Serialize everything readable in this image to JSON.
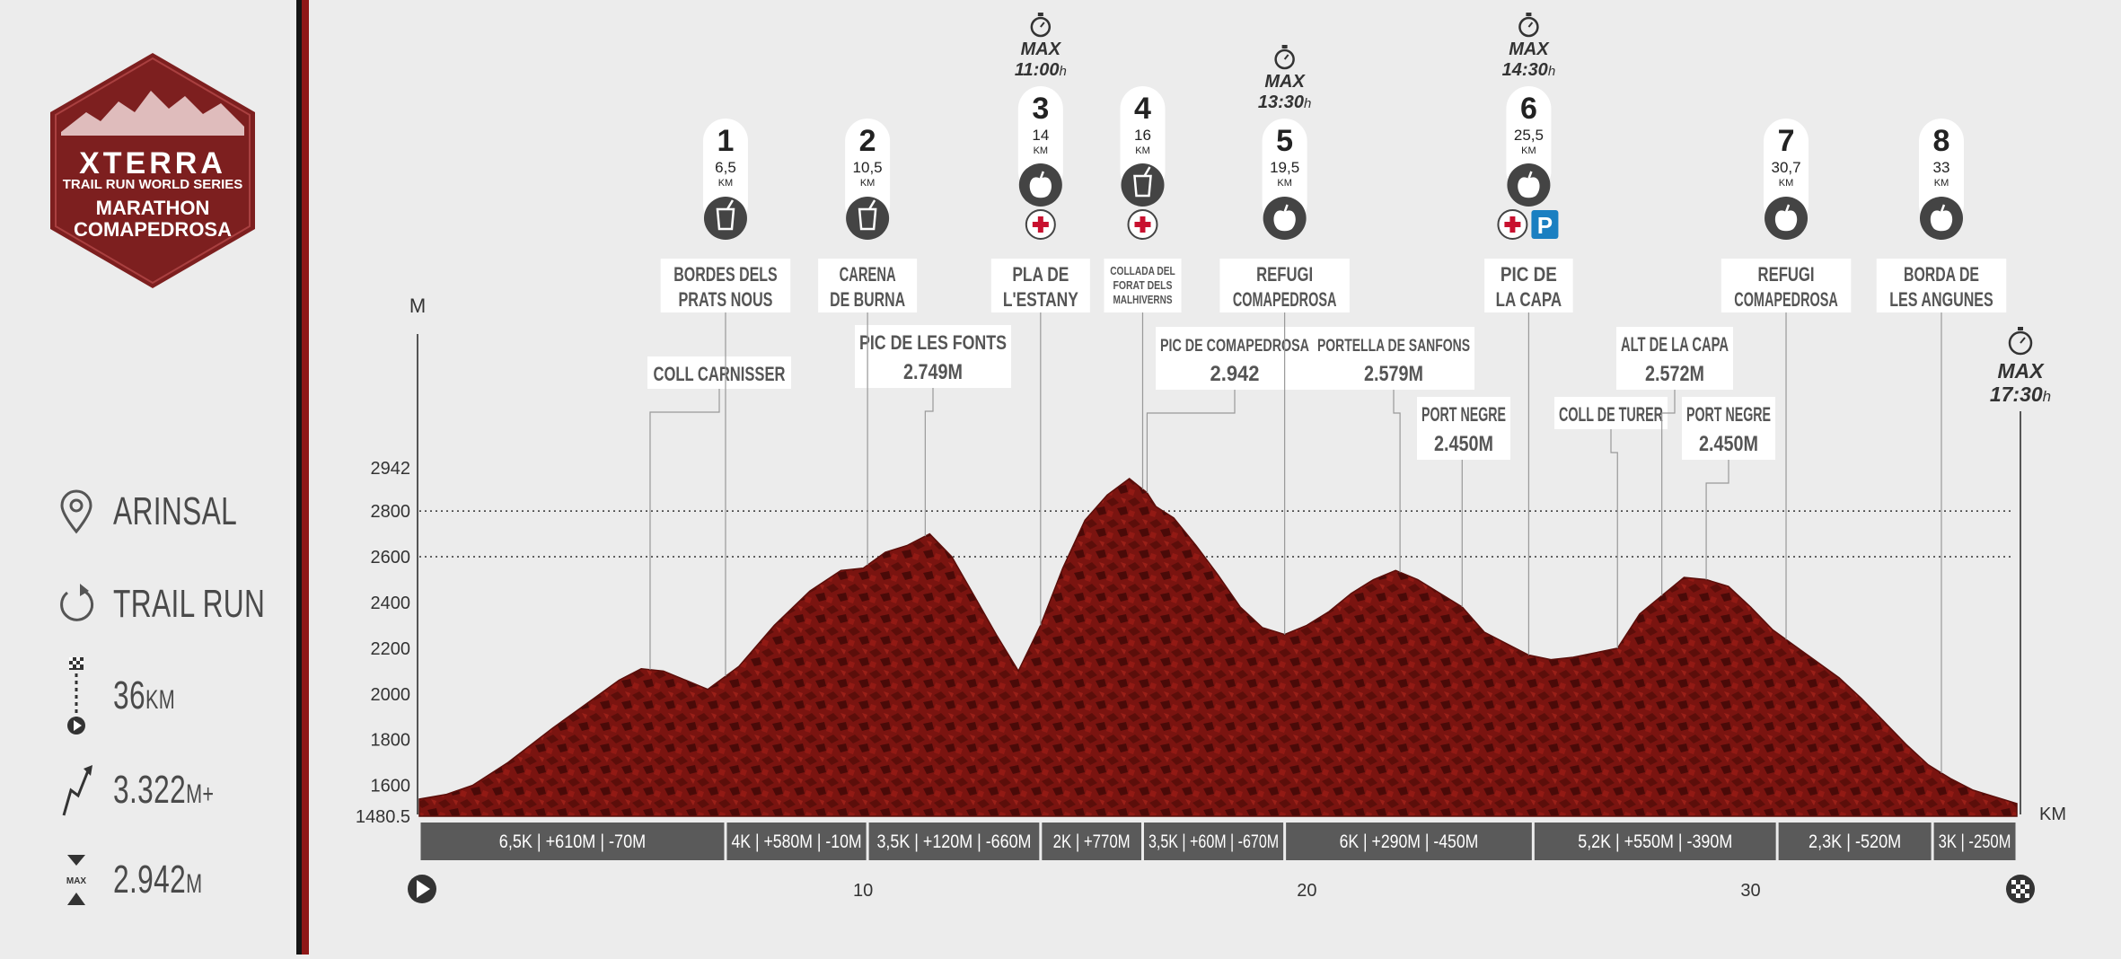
{
  "logo": {
    "brand": "XTERRA",
    "series": "TRAIL RUN WORLD SERIES",
    "race_line1": "MARATHON",
    "race_line2": "COMAPEDROSA"
  },
  "stats": {
    "location": "ARINSAL",
    "type": "TRAIL RUN",
    "distance": "36",
    "distance_unit": "KM",
    "elevation_gain": "3.322",
    "elevation_gain_unit": "M+",
    "max_altitude": "2.942",
    "max_altitude_unit": "M",
    "max_label": "MAX"
  },
  "colors": {
    "profile": "#7a1410",
    "accent_red": "#8e1717",
    "marker_dark": "#444444",
    "parking_blue": "#1a7fc1",
    "first_aid_red": "#c8102e"
  },
  "chart_data": {
    "type": "area",
    "ylabel": "M",
    "xlabel": "KM",
    "ylim": [
      1480.5,
      2942
    ],
    "xlim": [
      0,
      36
    ],
    "y_ticks": [
      "1480.5",
      "1600",
      "1800",
      "2000",
      "2200",
      "2400",
      "2600",
      "2800",
      "2942"
    ],
    "x_ticks": [
      "10",
      "20",
      "30"
    ],
    "reference_lines": [
      2800,
      2600
    ],
    "profile": {
      "x": [
        0,
        0.6,
        1.2,
        2,
        3,
        4,
        4.5,
        5,
        5.5,
        6,
        6.5,
        7.2,
        8,
        8.8,
        9.5,
        10,
        10.5,
        11,
        11.5,
        12,
        12.5,
        13,
        13.5,
        14,
        14.5,
        15,
        15.5,
        16,
        16.4,
        16.6,
        17,
        17.5,
        18,
        18.5,
        19,
        19.5,
        20,
        20.5,
        21,
        21.5,
        22,
        22.5,
        23,
        23.5,
        24,
        24.5,
        25,
        25.5,
        26,
        26.5,
        27,
        27.5,
        28,
        28.5,
        29,
        29.5,
        30,
        30.5,
        31,
        31.5,
        32,
        32.5,
        33,
        33.5,
        34,
        34.5,
        35,
        35.5,
        36
      ],
      "y": [
        1540,
        1560,
        1600,
        1700,
        1850,
        1990,
        2060,
        2110,
        2100,
        2060,
        2020,
        2120,
        2300,
        2450,
        2540,
        2550,
        2620,
        2650,
        2700,
        2600,
        2430,
        2260,
        2100,
        2300,
        2550,
        2760,
        2870,
        2942,
        2880,
        2820,
        2770,
        2650,
        2520,
        2380,
        2290,
        2260,
        2300,
        2360,
        2440,
        2500,
        2540,
        2500,
        2440,
        2380,
        2270,
        2220,
        2170,
        2150,
        2160,
        2180,
        2200,
        2350,
        2430,
        2510,
        2500,
        2470,
        2380,
        2280,
        2210,
        2140,
        2070,
        1980,
        1880,
        1780,
        1690,
        1630,
        1580,
        1550,
        1520
      ]
    },
    "checkpoints": [
      {
        "num": "1",
        "km": "6,5",
        "unit": "KM",
        "name_l1": "BORDES DELS",
        "name_l2": "PRATS NOUS",
        "service": "drink-icon",
        "x": 6.9
      },
      {
        "num": "2",
        "km": "10,5",
        "unit": "KM",
        "name_l1": "CARENA",
        "name_l2": "DE BURNA",
        "service": "drink-icon",
        "x": 10.1
      },
      {
        "num": "3",
        "km": "14",
        "unit": "KM",
        "name_l1": "PLA DE",
        "name_l2": "L'ESTANY",
        "service": "apple-icon",
        "extra": [
          "first-aid-icon"
        ],
        "cutoff_label": "MAX",
        "cutoff_time": "11:00",
        "cutoff_suffix": "h",
        "x": 14
      },
      {
        "num": "4",
        "km": "16",
        "unit": "KM",
        "name_l1": "COLLADA DEL",
        "name_l2": "FORAT DELS",
        "name_l3": "MALHIVERNS",
        "service": "drink-icon",
        "extra": [
          "first-aid-icon"
        ],
        "x": 16.3
      },
      {
        "num": "5",
        "km": "19,5",
        "unit": "KM",
        "name_l1": "REFUGI",
        "name_l2": "COMAPEDROSA",
        "service": "apple-icon",
        "cutoff_label": "MAX",
        "cutoff_time": "13:30",
        "cutoff_suffix": "h",
        "x": 19.5
      },
      {
        "num": "6",
        "km": "25,5",
        "unit": "KM",
        "name_l1": "PIC DE",
        "name_l2": "LA CAPA",
        "service": "apple-icon",
        "extra": [
          "first-aid-icon",
          "parking-icon"
        ],
        "cutoff_label": "MAX",
        "cutoff_time": "14:30",
        "cutoff_suffix": "h",
        "x": 25
      },
      {
        "num": "7",
        "km": "30,7",
        "unit": "KM",
        "name_l1": "REFUGI",
        "name_l2": "COMAPEDROSA",
        "service": "apple-icon",
        "x": 30.8
      },
      {
        "num": "8",
        "km": "33",
        "unit": "KM",
        "name_l1": "BORDA DE",
        "name_l2": "LES ANGUNES",
        "service": "apple-icon",
        "x": 34.3
      }
    ],
    "peaks": [
      {
        "name": "COLL CARNISSER",
        "alt": "",
        "x": 5.2
      },
      {
        "name": "PIC DE LES FONTS",
        "alt": "2.749M",
        "x": 11.4
      },
      {
        "name": "PIC DE COMAPEDROSA",
        "alt": "2.942",
        "x": 16.4
      },
      {
        "name": "PORTELLA DE SANFONS",
        "alt": "2.579M",
        "x": 22.1
      },
      {
        "name": "PORT NEGRE",
        "alt": "2.450M",
        "x": 23.5
      },
      {
        "name": "COLL DE TURER",
        "alt": "",
        "x": 27
      },
      {
        "name": "ALT DE LA CAPA",
        "alt": "2.572M",
        "x": 28
      },
      {
        "name": "PORT NEGRE",
        "alt": "2.450M",
        "x": 29
      }
    ],
    "finish": {
      "label": "MAX",
      "time": "17:30",
      "suffix": "h"
    },
    "segments": [
      {
        "text": "6,5K | +610M | -70M",
        "from": 0,
        "to": 6.9
      },
      {
        "text": "4K | +580M | -10M",
        "from": 6.9,
        "to": 10.1
      },
      {
        "text": "3,5K | +120M | -660M",
        "from": 10.1,
        "to": 14
      },
      {
        "text": "2K | +770M",
        "from": 14,
        "to": 16.3
      },
      {
        "text": "3,5K | +60M | -670M",
        "from": 16.3,
        "to": 19.5
      },
      {
        "text": "6K | +290M | -450M",
        "from": 19.5,
        "to": 25.1
      },
      {
        "text": "5,2K | +550M | -390M",
        "from": 25.1,
        "to": 30.6
      },
      {
        "text": "2,3K | -520M",
        "from": 30.6,
        "to": 34.1
      },
      {
        "text": "3K | -250M",
        "from": 34.1,
        "to": 36
      }
    ]
  }
}
